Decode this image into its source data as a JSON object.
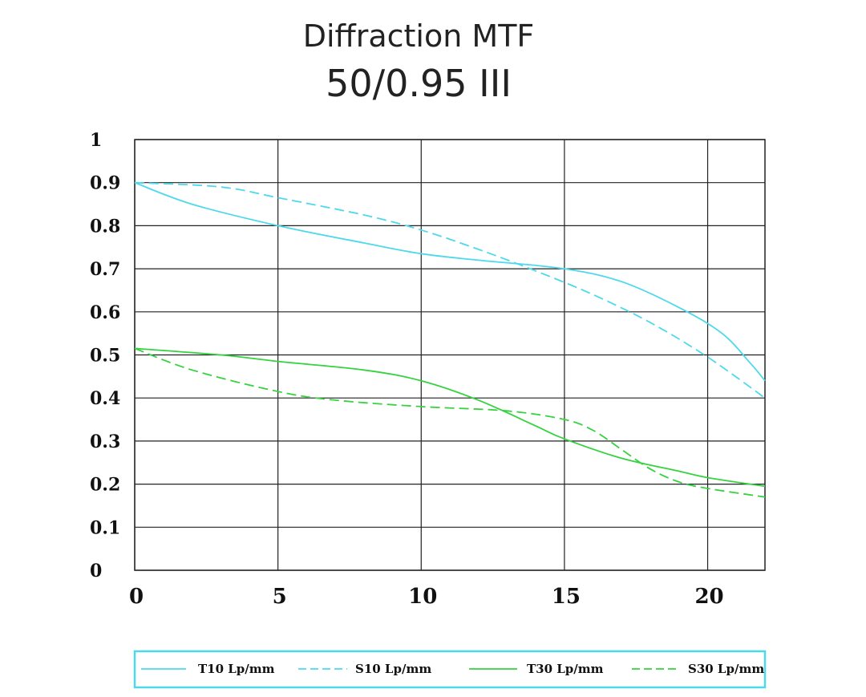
{
  "chart_data": {
    "type": "line",
    "title": "Diffraction MTF",
    "subtitle": "50/0.95 III",
    "xlabel": "",
    "ylabel": "",
    "xlim": [
      0,
      22
    ],
    "ylim": [
      0,
      1
    ],
    "grid": true,
    "x_ticks": [
      0,
      5,
      10,
      15,
      20
    ],
    "x_tick_labels": [
      "0",
      "5",
      "10",
      "15",
      "20"
    ],
    "y_ticks": [
      0,
      0.1,
      0.2,
      0.3,
      0.4,
      0.5,
      0.6,
      0.7,
      0.8,
      0.9,
      1
    ],
    "y_tick_labels": [
      "0",
      "0.1",
      "0.2",
      "0.3",
      "0.4",
      "0.5",
      "0.6",
      "0.7",
      "0.8",
      "0.9",
      "1"
    ],
    "legend_position": "bottom",
    "series": [
      {
        "name": "T10 Lp/mm",
        "color": "#4dd9ec",
        "dash": "solid",
        "x": [
          0,
          2,
          5,
          8,
          10,
          12,
          15,
          17,
          19,
          20.5,
          21.5,
          22
        ],
        "y": [
          0.9,
          0.85,
          0.8,
          0.76,
          0.735,
          0.72,
          0.7,
          0.67,
          0.61,
          0.55,
          0.48,
          0.44
        ]
      },
      {
        "name": "S10 Lp/mm",
        "color": "#4dd9ec",
        "dash": "dashed",
        "x": [
          0,
          3,
          5,
          8,
          10,
          12,
          14,
          16,
          18,
          20,
          22
        ],
        "y": [
          0.9,
          0.89,
          0.865,
          0.825,
          0.79,
          0.745,
          0.695,
          0.64,
          0.575,
          0.495,
          0.4
        ]
      },
      {
        "name": "T30 Lp/mm",
        "color": "#36d23f",
        "dash": "solid",
        "x": [
          0,
          3,
          5,
          8,
          10,
          12,
          14,
          15,
          17,
          19,
          20,
          22
        ],
        "y": [
          0.515,
          0.5,
          0.485,
          0.465,
          0.44,
          0.395,
          0.335,
          0.305,
          0.26,
          0.23,
          0.215,
          0.195
        ]
      },
      {
        "name": "S30 Lp/mm",
        "color": "#36d23f",
        "dash": "dashed",
        "x": [
          0,
          2,
          5,
          7,
          10,
          13,
          15,
          16,
          17,
          18,
          19,
          20,
          22
        ],
        "y": [
          0.515,
          0.465,
          0.415,
          0.395,
          0.38,
          0.37,
          0.35,
          0.325,
          0.28,
          0.235,
          0.205,
          0.19,
          0.17
        ]
      }
    ]
  }
}
